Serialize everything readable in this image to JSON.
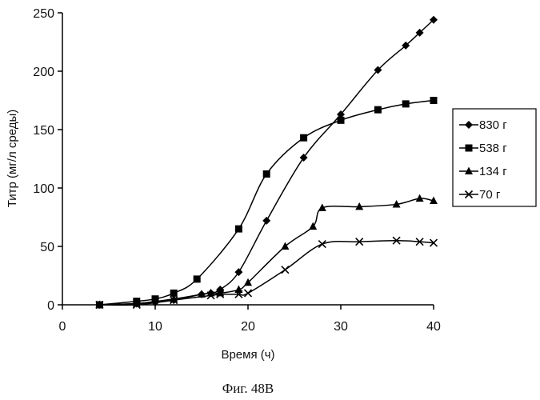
{
  "chart_data": {
    "type": "line",
    "title": "",
    "caption": "Фиг. 48B",
    "xlabel": "Время (ч)",
    "ylabel": "Титр (мг/л среды)",
    "xlim": [
      0,
      40
    ],
    "ylim": [
      0,
      250
    ],
    "xticks": [
      0,
      10,
      20,
      30,
      40
    ],
    "yticks": [
      0,
      50,
      100,
      150,
      200,
      250
    ],
    "grid": false,
    "legend_position": "right",
    "series": [
      {
        "name": "830 г",
        "marker": "diamond",
        "x": [
          4,
          8,
          10,
          12,
          15,
          16,
          17,
          19,
          22,
          26,
          30,
          34,
          37,
          38.5,
          40
        ],
        "y": [
          0,
          1,
          2,
          4,
          9,
          10,
          13,
          28,
          72,
          126,
          163,
          201,
          222,
          233,
          244
        ]
      },
      {
        "name": "538 г",
        "marker": "square",
        "x": [
          4,
          8,
          10,
          12,
          14.5,
          19,
          22,
          26,
          30,
          34,
          37,
          40
        ],
        "y": [
          0,
          3,
          5,
          10,
          22,
          65,
          112,
          143,
          158,
          167,
          172,
          175
        ]
      },
      {
        "name": "134 г",
        "marker": "triangle",
        "x": [
          4,
          8,
          12,
          15,
          16,
          17,
          19,
          20,
          24,
          27,
          28,
          32,
          36,
          38.5,
          40
        ],
        "y": [
          0,
          1,
          5,
          9,
          10,
          10,
          13,
          19,
          50,
          67,
          83,
          84,
          86,
          91,
          89
        ]
      },
      {
        "name": "70 г",
        "marker": "x",
        "x": [
          4,
          8,
          12,
          16,
          17,
          19,
          20,
          24,
          28,
          32,
          36,
          38.5,
          40
        ],
        "y": [
          0,
          0,
          4,
          8,
          9,
          9,
          10,
          30,
          52,
          54,
          55,
          54,
          53
        ]
      }
    ]
  }
}
